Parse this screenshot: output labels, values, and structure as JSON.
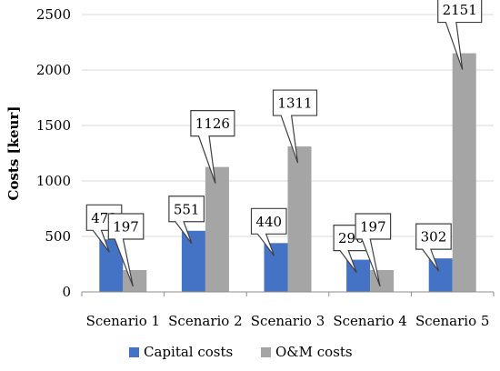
{
  "chart_data": {
    "type": "bar",
    "categories": [
      "Scenario 1",
      "Scenario 2",
      "Scenario 3",
      "Scenario 4",
      "Scenario 5"
    ],
    "series": [
      {
        "name": "Capital costs",
        "values": [
          473,
          551,
          440,
          290,
          302
        ],
        "color": "#4472C4"
      },
      {
        "name": "O&M costs",
        "values": [
          197,
          1126,
          1311,
          197,
          2151
        ],
        "color": "#A5A5A5"
      }
    ],
    "title": "",
    "xlabel": "",
    "ylabel": "Costs [keur]",
    "ylim": [
      0,
      2500
    ],
    "yticks": [
      0,
      500,
      1000,
      1500,
      2000,
      2500
    ],
    "grid": true,
    "legend_position": "bottom",
    "data_labels": "callout"
  }
}
